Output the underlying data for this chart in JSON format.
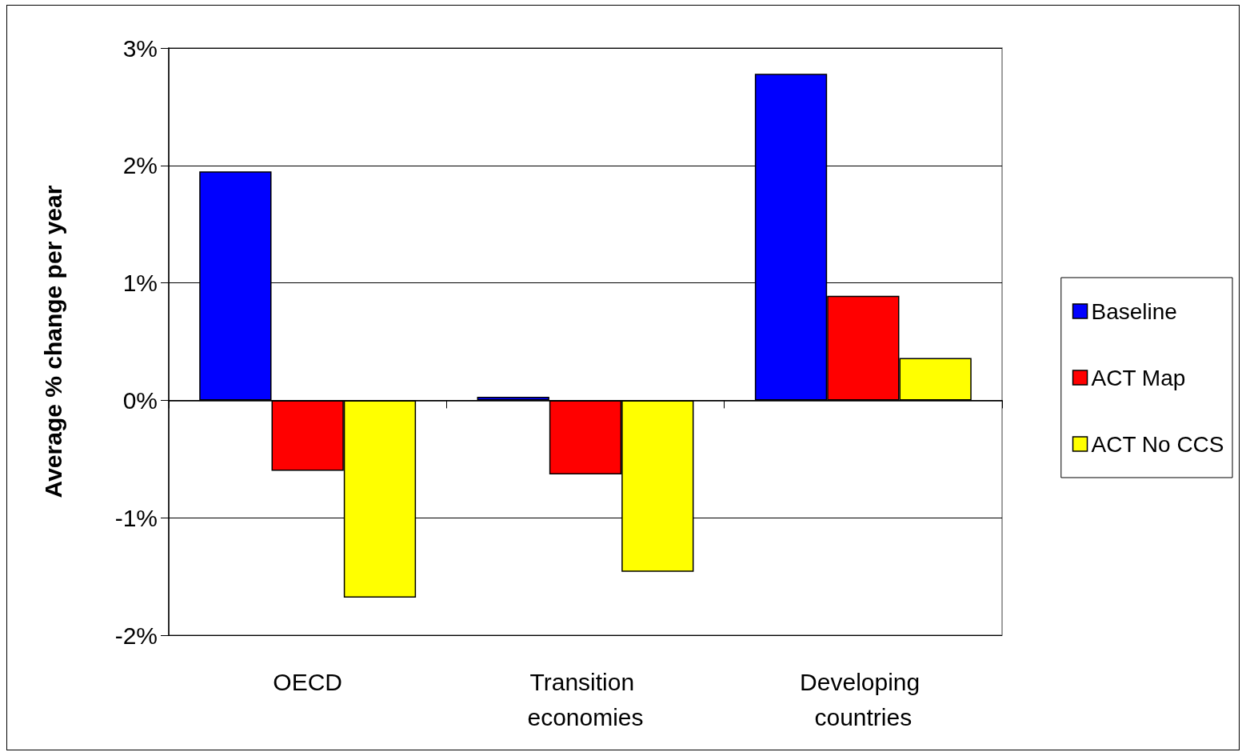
{
  "chart_data": {
    "type": "bar",
    "ylabel": "Average % change per year",
    "categories": [
      "OECD",
      "Transition economies",
      "Developing countries"
    ],
    "series": [
      {
        "name": "Baseline",
        "color": "#0000ff",
        "values": [
          1.95,
          0.03,
          2.78
        ]
      },
      {
        "name": "ACT Map",
        "color": "#ff0000",
        "values": [
          -0.6,
          -0.63,
          0.89
        ]
      },
      {
        "name": "ACT No CCS",
        "color": "#ffff00",
        "values": [
          -1.68,
          -1.46,
          0.36
        ]
      }
    ],
    "ylim": [
      -2,
      3
    ],
    "yticks": [
      {
        "value": -2,
        "label": "-2%"
      },
      {
        "value": -1,
        "label": "-1%"
      },
      {
        "value": 0,
        "label": "0%"
      },
      {
        "value": 1,
        "label": "1%"
      },
      {
        "value": 2,
        "label": "2%"
      },
      {
        "value": 3,
        "label": "3%"
      }
    ],
    "grid": "y",
    "legend": "right"
  }
}
